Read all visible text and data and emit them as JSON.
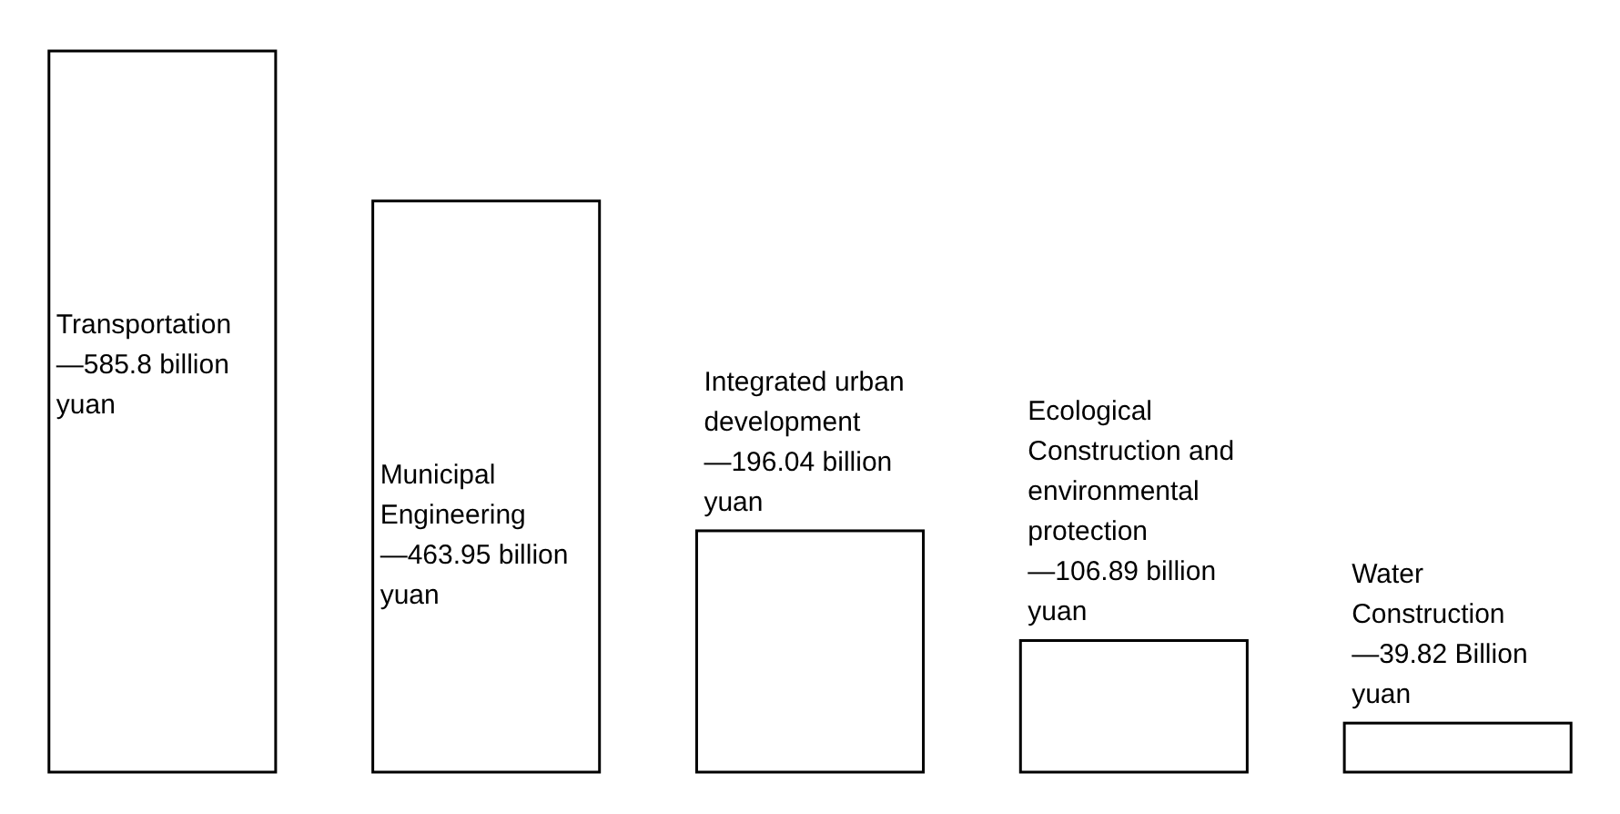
{
  "chart_data": {
    "type": "bar",
    "categories": [
      "Transportation",
      "Municipal Engineering",
      "Integrated urban development",
      "Ecological Construction and environmental protection",
      "Water Construction"
    ],
    "values": [
      585.8,
      463.95,
      196.04,
      106.89,
      39.82
    ],
    "value_labels": [
      "—585.8 billion yuan",
      "—463.95 billion yuan",
      "—196.04 billion yuan",
      "—106.89 billion yuan",
      "—39.82 Billion yuan"
    ],
    "color": "#ffffff"
  }
}
